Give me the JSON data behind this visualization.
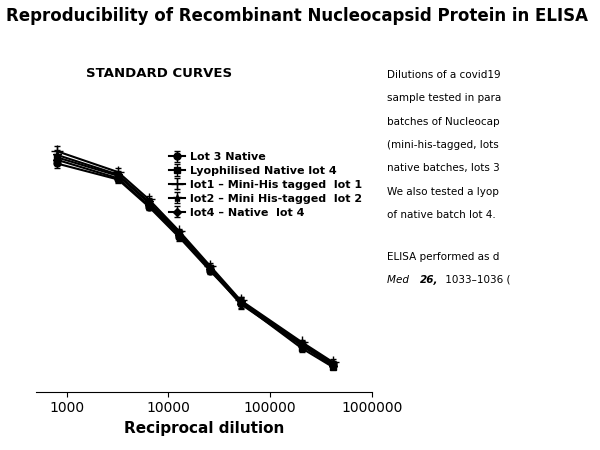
{
  "title": "Reproducibility of Recombinant Nucleocapsid Protein in ELISA",
  "subtitle": "STANDARD CURVES",
  "xlabel": "Reciprocal dilution",
  "xlim": [
    500,
    1000000
  ],
  "ylim": [
    0.0,
    2.3
  ],
  "background_color": "#ffffff",
  "series": [
    {
      "label": "Lot 3 Native",
      "marker": "o",
      "x": [
        800,
        3200,
        6400,
        12800,
        25600,
        51200,
        204800,
        409600
      ],
      "y": [
        1.85,
        1.72,
        1.5,
        1.25,
        0.98,
        0.72,
        0.38,
        0.22
      ],
      "yerr": [
        0.04,
        0.03,
        0.03,
        0.03,
        0.03,
        0.03,
        0.03,
        0.02
      ],
      "markersize": 5
    },
    {
      "label": "Lyophilised Native lot 4",
      "marker": "s",
      "x": [
        800,
        3200,
        6400,
        12800,
        25600,
        51200,
        204800,
        409600
      ],
      "y": [
        1.9,
        1.75,
        1.53,
        1.28,
        1.0,
        0.72,
        0.35,
        0.2
      ],
      "yerr": [
        0.05,
        0.03,
        0.03,
        0.03,
        0.03,
        0.05,
        0.03,
        0.02
      ],
      "markersize": 5
    },
    {
      "label": "lot1 – Mini-His tagged  lot 1",
      "marker": "+",
      "x": [
        800,
        3200,
        6400,
        12800,
        25600,
        51200,
        204800,
        409600
      ],
      "y": [
        1.95,
        1.78,
        1.56,
        1.3,
        1.02,
        0.74,
        0.4,
        0.24
      ],
      "yerr": [
        0.04,
        0.03,
        0.03,
        0.02,
        0.02,
        0.03,
        0.02,
        0.02
      ],
      "markersize": 8
    },
    {
      "label": "lot2 – Mini His-tagged  lot 2",
      "marker": "*",
      "x": [
        800,
        3200,
        6400,
        12800,
        25600,
        51200,
        204800,
        409600
      ],
      "y": [
        1.92,
        1.76,
        1.54,
        1.29,
        1.01,
        0.73,
        0.39,
        0.23
      ],
      "yerr": [
        0.04,
        0.03,
        0.03,
        0.02,
        0.02,
        0.03,
        0.02,
        0.02
      ],
      "markersize": 6
    },
    {
      "label": "lot4 – Native  lot 4",
      "marker": "D",
      "x": [
        800,
        3200,
        6400,
        12800,
        25600,
        51200,
        204800,
        409600
      ],
      "y": [
        1.88,
        1.73,
        1.51,
        1.27,
        0.99,
        0.71,
        0.37,
        0.21
      ],
      "yerr": [
        0.04,
        0.03,
        0.03,
        0.02,
        0.02,
        0.03,
        0.02,
        0.02
      ],
      "markersize": 4
    }
  ],
  "right_text_lines": [
    "Dilutions of a covid19",
    "sample tested in para",
    "batches of Nucleocap",
    "(mini-his-tagged, lots",
    "native batches, lots 3",
    "We also tested a lyop",
    "of native batch lot 4."
  ],
  "right_text2_lines": [
    "ELISA performed as d"
  ],
  "right_text3_italic": "Med ",
  "right_text3_bold": "26,",
  "right_text3_normal": " 1033–1036 (",
  "color": "#000000",
  "linewidth": 1.5
}
